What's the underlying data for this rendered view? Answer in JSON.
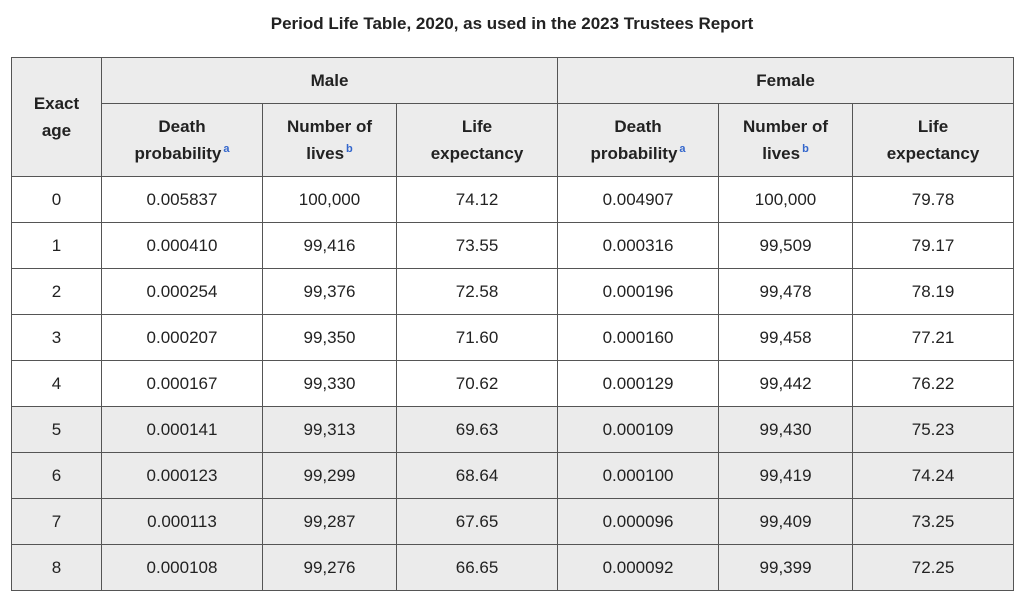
{
  "title": "Period Life Table, 2020, as used in the 2023 Trustees Report",
  "headers": {
    "age_line1": "Exact",
    "age_line2": "age",
    "male": "Male",
    "female": "Female",
    "death_line1": "Death",
    "death_line2": "probability",
    "death_note": "a",
    "lives_line1": "Number of",
    "lives_line2": "lives",
    "lives_note": "b",
    "life_line1": "Life",
    "life_line2": "expectancy"
  },
  "rows": [
    [
      "0",
      "0.005837",
      "100,000",
      "74.12",
      "0.004907",
      "100,000",
      "79.78"
    ],
    [
      "1",
      "0.000410",
      "99,416",
      "73.55",
      "0.000316",
      "99,509",
      "79.17"
    ],
    [
      "2",
      "0.000254",
      "99,376",
      "72.58",
      "0.000196",
      "99,478",
      "78.19"
    ],
    [
      "3",
      "0.000207",
      "99,350",
      "71.60",
      "0.000160",
      "99,458",
      "77.21"
    ],
    [
      "4",
      "0.000167",
      "99,330",
      "70.62",
      "0.000129",
      "99,442",
      "76.22"
    ],
    [
      "5",
      "0.000141",
      "99,313",
      "69.63",
      "0.000109",
      "99,430",
      "75.23"
    ],
    [
      "6",
      "0.000123",
      "99,299",
      "68.64",
      "0.000100",
      "99,419",
      "74.24"
    ],
    [
      "7",
      "0.000113",
      "99,287",
      "67.65",
      "0.000096",
      "99,409",
      "73.25"
    ],
    [
      "8",
      "0.000108",
      "99,276",
      "66.65",
      "0.000092",
      "99,399",
      "72.25"
    ]
  ]
}
